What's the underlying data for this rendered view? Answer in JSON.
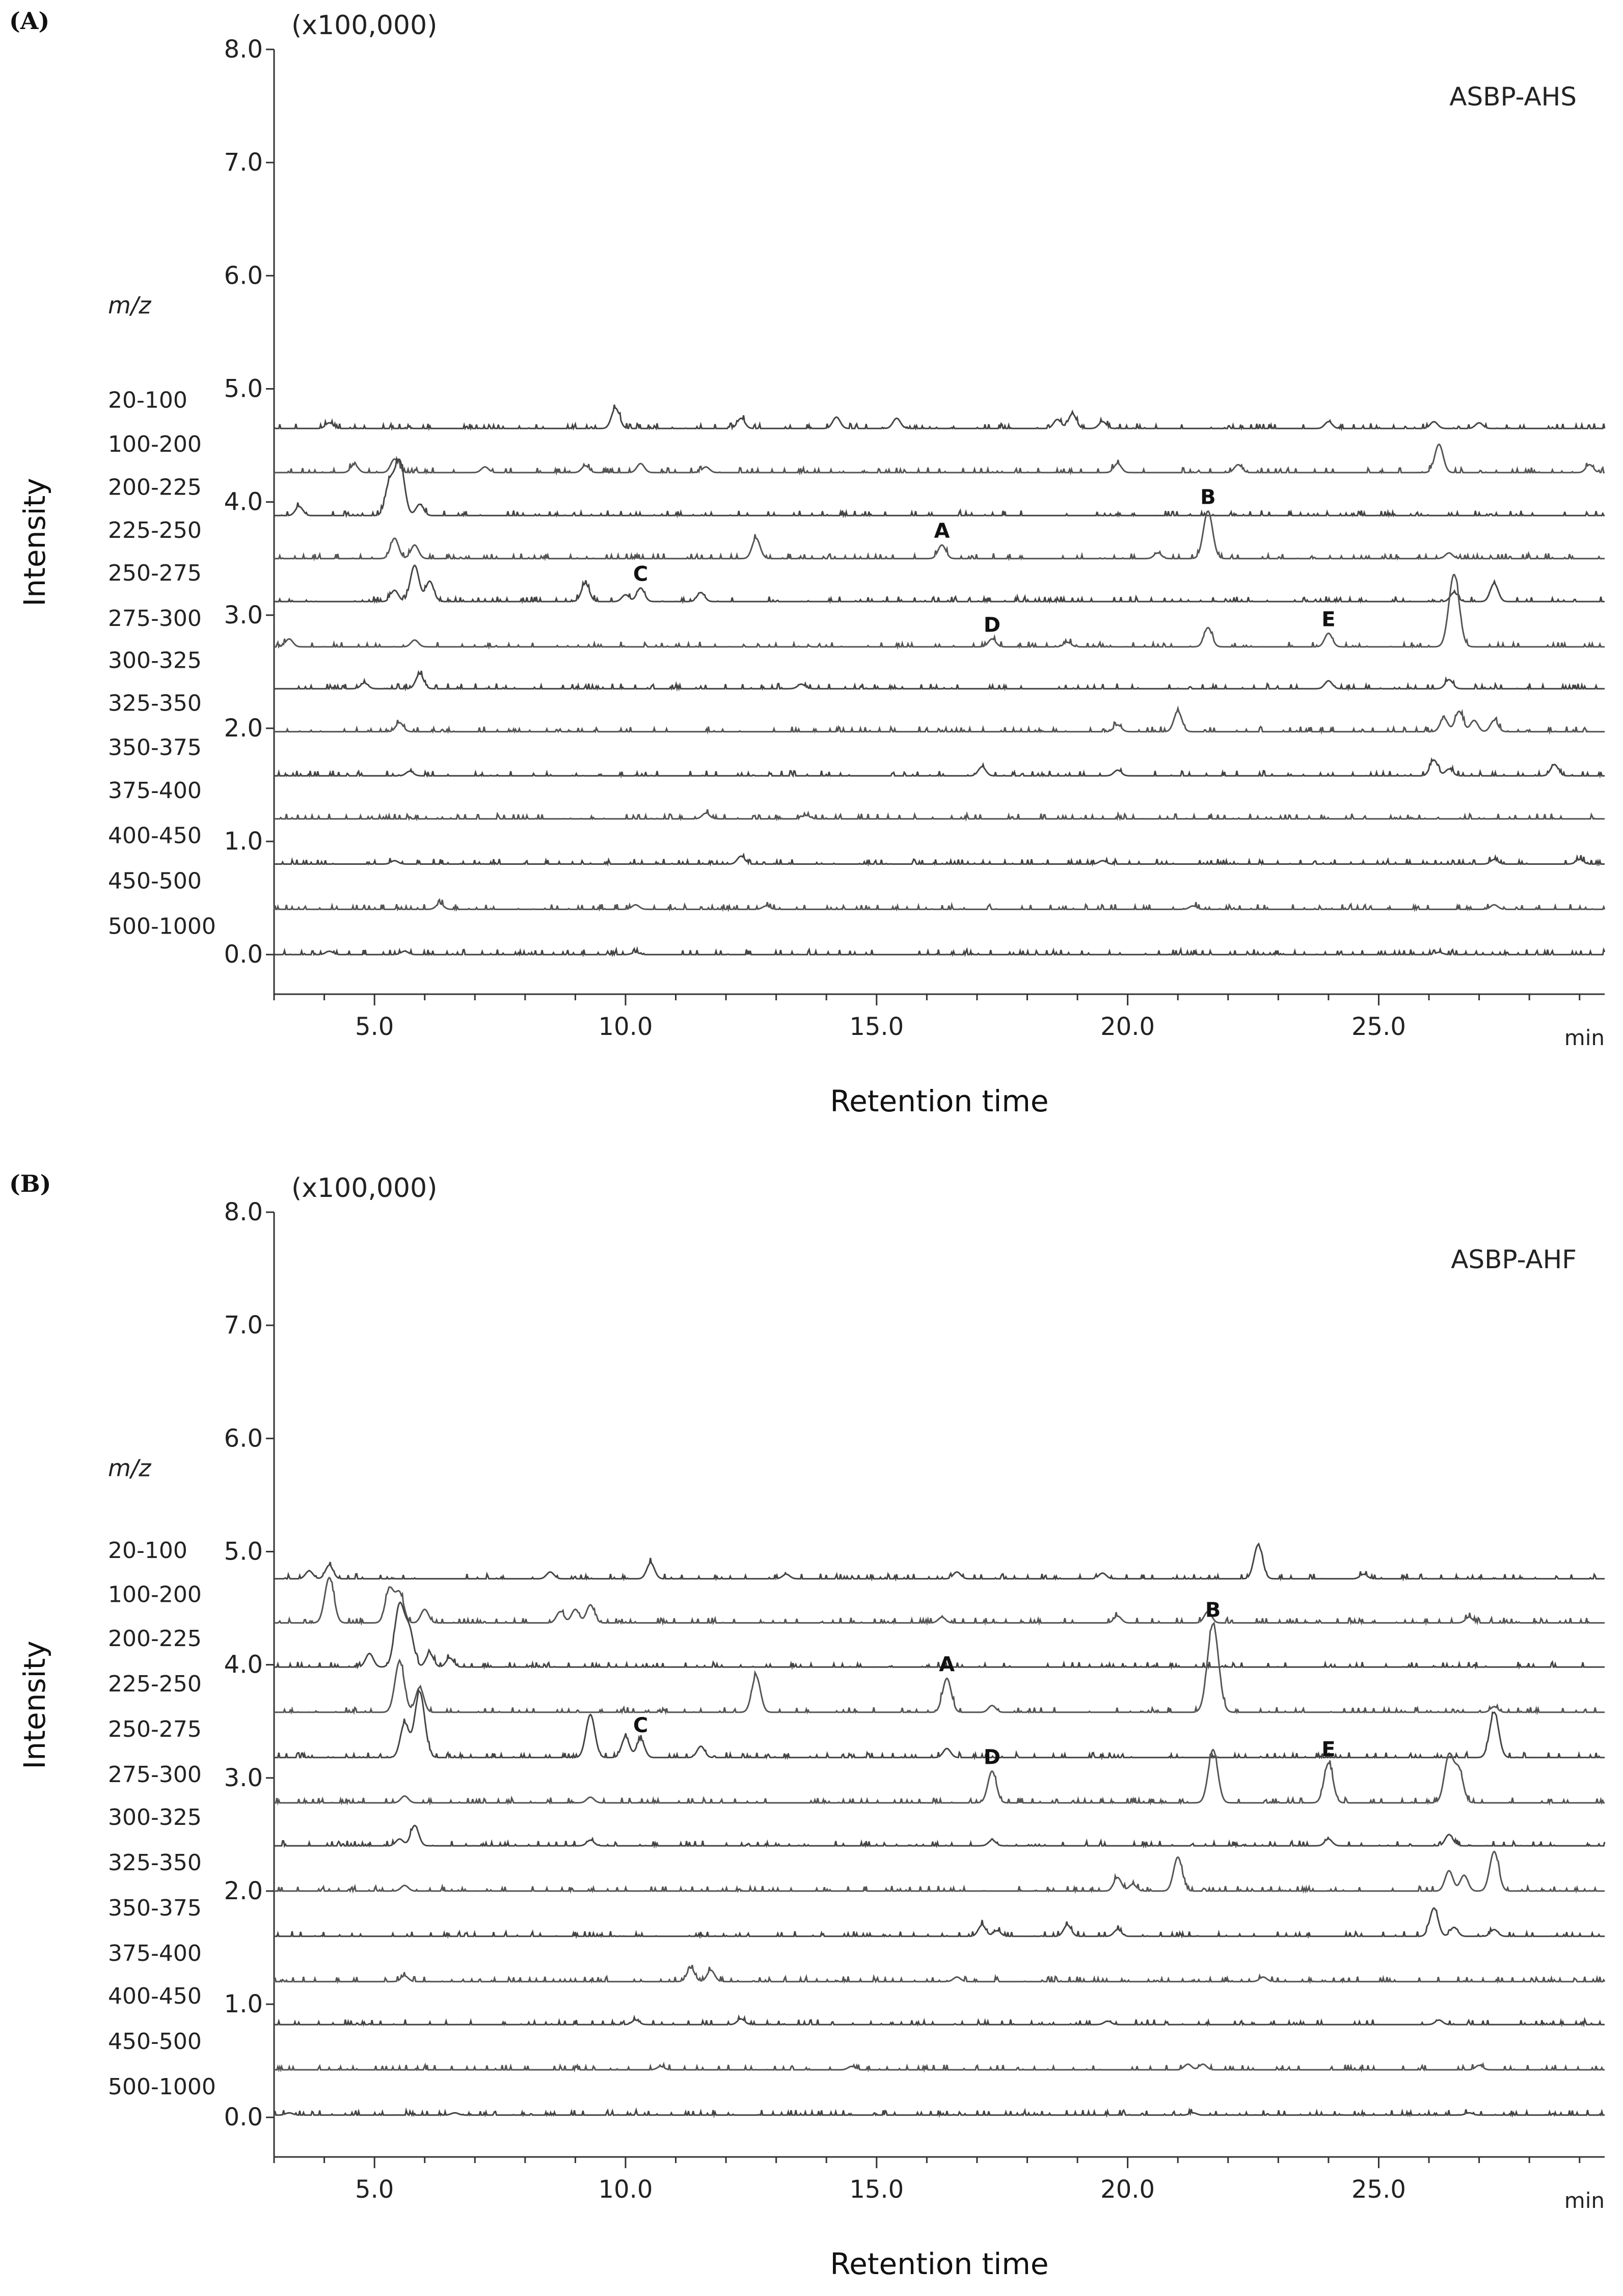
{
  "chart_data": [
    {
      "type": "line",
      "panel": "(A)",
      "sample": "ASBP-AHS",
      "multiplier": "(x100,000)",
      "xlabel": "Retention time",
      "x_unit": "min",
      "ylabel": "Intensity",
      "xlim": [
        3.0,
        29.5
      ],
      "ylim": [
        -0.35,
        8.0
      ],
      "x_ticks": [
        "5.0",
        "10.0",
        "15.0",
        "20.0",
        "25.0"
      ],
      "y_ticks": [
        "0.0",
        "1.0",
        "2.0",
        "3.0",
        "4.0",
        "5.0",
        "6.0",
        "7.0",
        "8.0"
      ],
      "mz_header": "m/z",
      "series": [
        {
          "name": "20-100",
          "baseline": 4.65,
          "peaks": [
            [
              4.1,
              0.05
            ],
            [
              9.8,
              0.18
            ],
            [
              12.3,
              0.09
            ],
            [
              14.2,
              0.1
            ],
            [
              15.4,
              0.09
            ],
            [
              18.6,
              0.08
            ],
            [
              18.9,
              0.13
            ],
            [
              19.5,
              0.06
            ],
            [
              24.0,
              0.06
            ],
            [
              26.1,
              0.06
            ],
            [
              27.0,
              0.05
            ]
          ]
        },
        {
          "name": "100-200",
          "baseline": 4.26,
          "peaks": [
            [
              4.6,
              0.07
            ],
            [
              5.4,
              0.12
            ],
            [
              7.2,
              0.05
            ],
            [
              9.2,
              0.06
            ],
            [
              10.3,
              0.08
            ],
            [
              11.6,
              0.05
            ],
            [
              19.8,
              0.08
            ],
            [
              22.2,
              0.07
            ],
            [
              26.2,
              0.25
            ],
            [
              29.2,
              0.07
            ]
          ]
        },
        {
          "name": "200-225",
          "baseline": 3.88,
          "peaks": [
            [
              3.5,
              0.08
            ],
            [
              5.3,
              0.28
            ],
            [
              5.5,
              0.48
            ],
            [
              5.9,
              0.1
            ]
          ]
        },
        {
          "name": "225-250",
          "baseline": 3.5,
          "peaks": [
            [
              5.4,
              0.18
            ],
            [
              5.8,
              0.12
            ],
            [
              12.6,
              0.18
            ],
            [
              16.3,
              0.12
            ],
            [
              20.6,
              0.05
            ],
            [
              21.6,
              0.42
            ],
            [
              26.4,
              0.05
            ]
          ]
        },
        {
          "name": "250-275",
          "baseline": 3.12,
          "peaks": [
            [
              5.4,
              0.1
            ],
            [
              5.8,
              0.32
            ],
            [
              6.1,
              0.18
            ],
            [
              9.2,
              0.16
            ],
            [
              10.0,
              0.06
            ],
            [
              10.3,
              0.12
            ],
            [
              11.5,
              0.08
            ],
            [
              26.5,
              0.08
            ],
            [
              27.3,
              0.16
            ]
          ]
        },
        {
          "name": "275-300",
          "baseline": 2.72,
          "peaks": [
            [
              3.3,
              0.07
            ],
            [
              5.8,
              0.06
            ],
            [
              17.3,
              0.07
            ],
            [
              18.8,
              0.04
            ],
            [
              21.6,
              0.17
            ],
            [
              24.0,
              0.12
            ],
            [
              26.5,
              0.64
            ]
          ]
        },
        {
          "name": "300-325",
          "baseline": 2.35,
          "peaks": [
            [
              4.8,
              0.05
            ],
            [
              5.9,
              0.13
            ],
            [
              13.5,
              0.04
            ],
            [
              24.0,
              0.07
            ],
            [
              26.4,
              0.08
            ]
          ]
        },
        {
          "name": "325-350",
          "baseline": 1.97,
          "peaks": [
            [
              5.5,
              0.08
            ],
            [
              19.8,
              0.06
            ],
            [
              21.0,
              0.18
            ],
            [
              26.3,
              0.12
            ],
            [
              26.6,
              0.18
            ],
            [
              26.9,
              0.1
            ],
            [
              27.3,
              0.1
            ]
          ]
        },
        {
          "name": "350-375",
          "baseline": 1.58,
          "peaks": [
            [
              5.7,
              0.04
            ],
            [
              17.1,
              0.08
            ],
            [
              19.8,
              0.05
            ],
            [
              26.1,
              0.14
            ],
            [
              26.4,
              0.06
            ],
            [
              28.5,
              0.1
            ]
          ]
        },
        {
          "name": "375-400",
          "baseline": 1.2,
          "peaks": [
            [
              11.6,
              0.05
            ],
            [
              13.6,
              0.03
            ]
          ]
        },
        {
          "name": "400-450",
          "baseline": 0.8,
          "peaks": [
            [
              5.4,
              0.03
            ],
            [
              12.3,
              0.07
            ],
            [
              19.5,
              0.03
            ],
            [
              27.3,
              0.04
            ],
            [
              29.0,
              0.04
            ]
          ]
        },
        {
          "name": "450-500",
          "baseline": 0.4,
          "peaks": [
            [
              6.3,
              0.05
            ],
            [
              10.2,
              0.04
            ],
            [
              12.8,
              0.03
            ],
            [
              21.3,
              0.03
            ],
            [
              27.3,
              0.04
            ]
          ]
        },
        {
          "name": "500-1000",
          "baseline": 0.0,
          "peaks": [
            [
              4.1,
              0.03
            ],
            [
              5.6,
              0.03
            ],
            [
              10.2,
              0.02
            ],
            [
              26.2,
              0.02
            ]
          ]
        }
      ],
      "annotations": [
        {
          "text": "A",
          "series": "225-250",
          "x": 16.3
        },
        {
          "text": "B",
          "series": "225-250",
          "x": 21.6
        },
        {
          "text": "C",
          "series": "250-275",
          "x": 10.3
        },
        {
          "text": "D",
          "series": "275-300",
          "x": 17.3
        },
        {
          "text": "E",
          "series": "275-300",
          "x": 24.0
        }
      ]
    },
    {
      "type": "line",
      "panel": "(B)",
      "sample": "ASBP-AHF",
      "multiplier": "(x100,000)",
      "xlabel": "Retention time",
      "x_unit": "min",
      "ylabel": "Intensity",
      "xlim": [
        3.0,
        29.5
      ],
      "ylim": [
        -0.35,
        8.0
      ],
      "x_ticks": [
        "5.0",
        "10.0",
        "15.0",
        "20.0",
        "25.0"
      ],
      "y_ticks": [
        "0.0",
        "1.0",
        "2.0",
        "3.0",
        "4.0",
        "5.0",
        "6.0",
        "7.0",
        "8.0"
      ],
      "mz_header": "m/z",
      "series": [
        {
          "name": "20-100",
          "baseline": 4.76,
          "peaks": [
            [
              3.7,
              0.07
            ],
            [
              4.1,
              0.12
            ],
            [
              8.5,
              0.06
            ],
            [
              10.5,
              0.14
            ],
            [
              13.2,
              0.04
            ],
            [
              16.6,
              0.06
            ],
            [
              19.5,
              0.05
            ],
            [
              22.6,
              0.3
            ],
            [
              24.7,
              0.04
            ]
          ]
        },
        {
          "name": "100-200",
          "baseline": 4.37,
          "peaks": [
            [
              4.1,
              0.4
            ],
            [
              5.3,
              0.3
            ],
            [
              5.5,
              0.26
            ],
            [
              6.0,
              0.12
            ],
            [
              8.7,
              0.1
            ],
            [
              9.0,
              0.12
            ],
            [
              9.3,
              0.16
            ],
            [
              16.3,
              0.05
            ],
            [
              19.8,
              0.06
            ],
            [
              21.6,
              0.1
            ],
            [
              26.8,
              0.05
            ]
          ]
        },
        {
          "name": "200-225",
          "baseline": 3.98,
          "peaks": [
            [
              4.9,
              0.12
            ],
            [
              5.5,
              0.55
            ],
            [
              5.7,
              0.3
            ],
            [
              6.1,
              0.12
            ],
            [
              6.5,
              0.08
            ]
          ]
        },
        {
          "name": "225-250",
          "baseline": 3.58,
          "peaks": [
            [
              5.5,
              0.45
            ],
            [
              5.9,
              0.22
            ],
            [
              12.6,
              0.32
            ],
            [
              16.4,
              0.3
            ],
            [
              17.3,
              0.06
            ],
            [
              21.7,
              0.78
            ],
            [
              27.3,
              0.05
            ]
          ]
        },
        {
          "name": "250-275",
          "baseline": 3.18,
          "peaks": [
            [
              5.6,
              0.3
            ],
            [
              5.9,
              0.58
            ],
            [
              9.3,
              0.38
            ],
            [
              10.0,
              0.18
            ],
            [
              10.3,
              0.16
            ],
            [
              11.5,
              0.1
            ],
            [
              16.4,
              0.08
            ],
            [
              27.3,
              0.4
            ]
          ]
        },
        {
          "name": "275-300",
          "baseline": 2.78,
          "peaks": [
            [
              5.6,
              0.06
            ],
            [
              9.3,
              0.05
            ],
            [
              17.3,
              0.28
            ],
            [
              21.7,
              0.47
            ],
            [
              24.0,
              0.35
            ],
            [
              26.4,
              0.42
            ],
            [
              26.6,
              0.28
            ]
          ]
        },
        {
          "name": "300-325",
          "baseline": 2.4,
          "peaks": [
            [
              5.5,
              0.06
            ],
            [
              5.8,
              0.18
            ],
            [
              9.3,
              0.05
            ],
            [
              17.3,
              0.05
            ],
            [
              24.0,
              0.06
            ],
            [
              26.4,
              0.1
            ]
          ]
        },
        {
          "name": "325-350",
          "baseline": 2.0,
          "peaks": [
            [
              5.6,
              0.05
            ],
            [
              19.8,
              0.12
            ],
            [
              20.1,
              0.06
            ],
            [
              21.0,
              0.3
            ],
            [
              26.4,
              0.18
            ],
            [
              26.7,
              0.14
            ],
            [
              27.3,
              0.35
            ]
          ]
        },
        {
          "name": "350-375",
          "baseline": 1.6,
          "peaks": [
            [
              17.1,
              0.1
            ],
            [
              17.4,
              0.05
            ],
            [
              18.8,
              0.1
            ],
            [
              19.8,
              0.06
            ],
            [
              26.1,
              0.25
            ],
            [
              26.5,
              0.08
            ],
            [
              27.3,
              0.06
            ]
          ]
        },
        {
          "name": "375-400",
          "baseline": 1.2,
          "peaks": [
            [
              5.6,
              0.05
            ],
            [
              11.3,
              0.12
            ],
            [
              11.7,
              0.1
            ],
            [
              16.6,
              0.04
            ],
            [
              22.7,
              0.04
            ]
          ]
        },
        {
          "name": "400-450",
          "baseline": 0.82,
          "peaks": [
            [
              10.2,
              0.04
            ],
            [
              12.3,
              0.05
            ],
            [
              19.6,
              0.03
            ],
            [
              26.2,
              0.04
            ]
          ]
        },
        {
          "name": "450-500",
          "baseline": 0.42,
          "peaks": [
            [
              10.7,
              0.03
            ],
            [
              14.5,
              0.03
            ],
            [
              21.2,
              0.05
            ],
            [
              21.5,
              0.05
            ],
            [
              27.0,
              0.04
            ]
          ]
        },
        {
          "name": "500-1000",
          "baseline": 0.02,
          "peaks": [
            [
              3.3,
              0.02
            ],
            [
              6.6,
              0.02
            ],
            [
              21.3,
              0.02
            ],
            [
              26.8,
              0.02
            ]
          ]
        }
      ],
      "annotations": [
        {
          "text": "A",
          "series": "225-250",
          "x": 16.4
        },
        {
          "text": "B",
          "series": "225-250",
          "x": 21.7
        },
        {
          "text": "C",
          "series": "250-275",
          "x": 10.3
        },
        {
          "text": "D",
          "series": "275-300",
          "x": 17.3
        },
        {
          "text": "E",
          "series": "275-300",
          "x": 24.0
        }
      ]
    }
  ]
}
